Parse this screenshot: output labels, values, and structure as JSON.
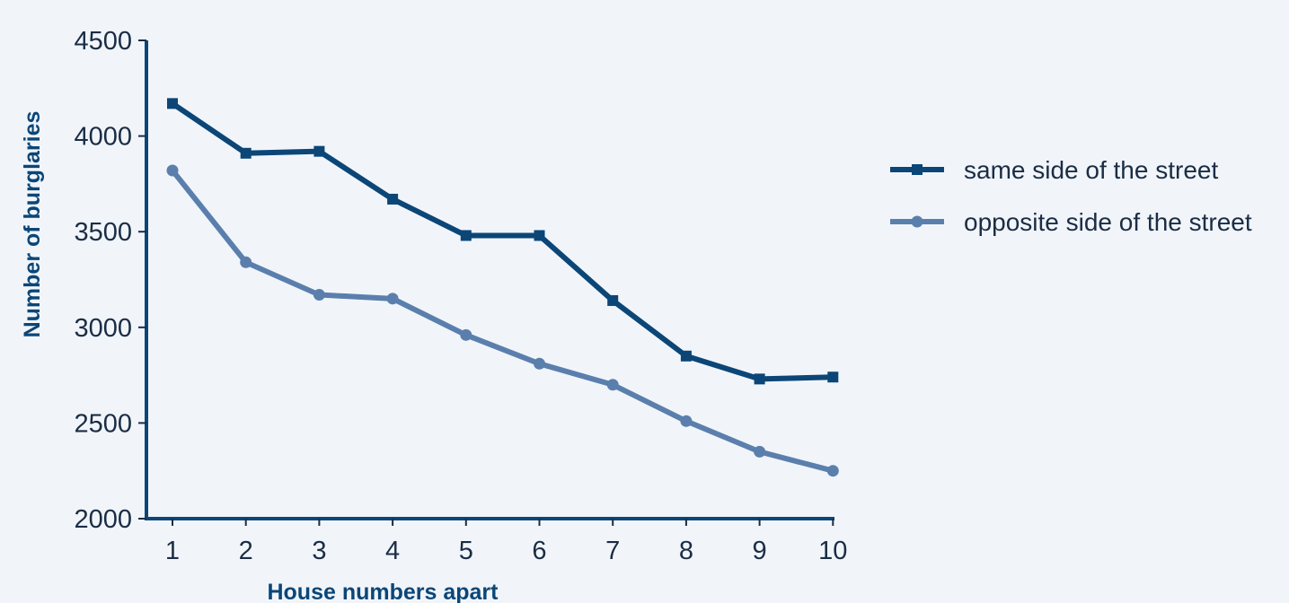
{
  "chart_data": {
    "type": "line",
    "title": "",
    "xlabel": "House numbers apart",
    "ylabel": "Number of burglaries",
    "x": [
      1,
      2,
      3,
      4,
      5,
      6,
      7,
      8,
      9,
      10
    ],
    "x_tick_labels": [
      "1",
      "2",
      "3",
      "4",
      "5",
      "6",
      "7",
      "8",
      "9",
      "10"
    ],
    "ylim": [
      2000,
      4500
    ],
    "y_ticks": [
      2000,
      2500,
      3000,
      3500,
      4000,
      4500
    ],
    "y_tick_labels": [
      "2000",
      "2500",
      "3000",
      "3500",
      "4000",
      "4500"
    ],
    "grid": false,
    "legend_position": "right",
    "series": [
      {
        "name": "same side of the street",
        "color": "#0b4677",
        "marker": "square",
        "values": [
          4170,
          3910,
          3920,
          3670,
          3480,
          3480,
          3140,
          2850,
          2730,
          2740
        ]
      },
      {
        "name": "opposite side of the street",
        "color": "#5b7fad",
        "marker": "circle",
        "values": [
          3820,
          3340,
          3170,
          3150,
          2960,
          2810,
          2700,
          2510,
          2350,
          2250
        ]
      }
    ]
  }
}
